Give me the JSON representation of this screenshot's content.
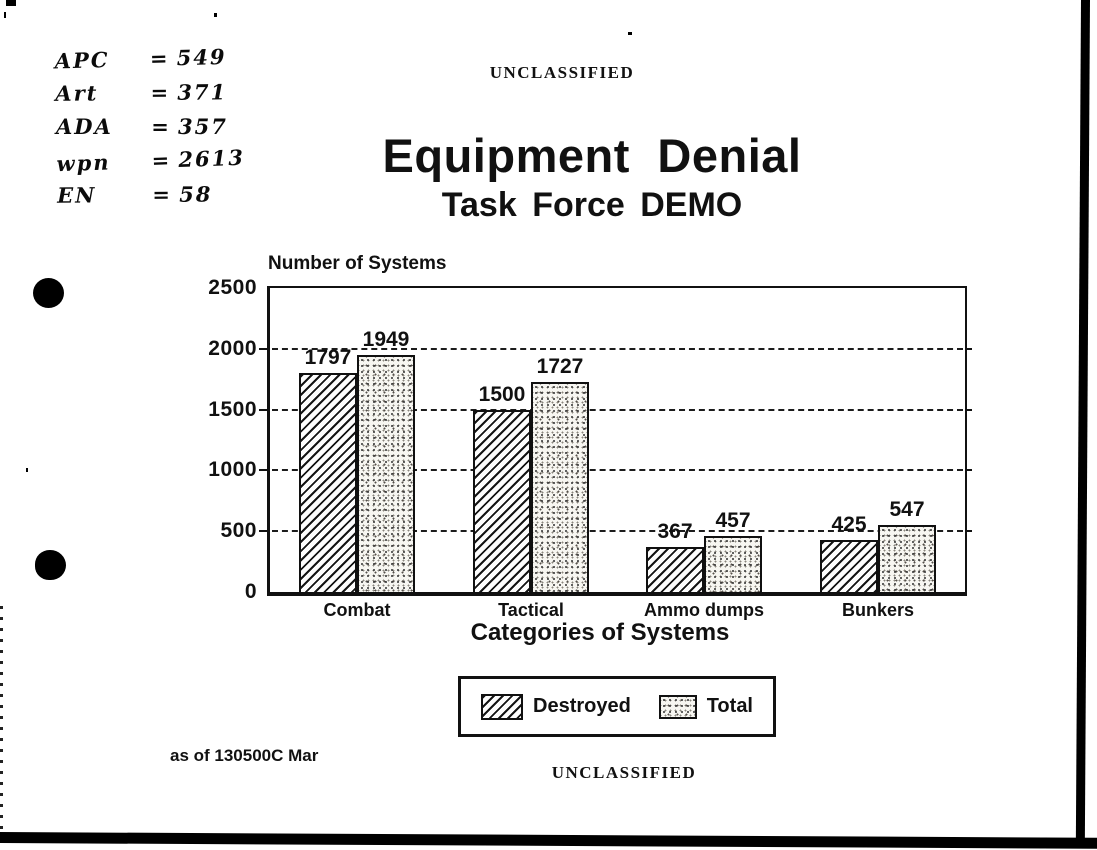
{
  "classification": {
    "top": "UNCLASSIFIED",
    "bottom": "UNCLASSIFIED"
  },
  "title": {
    "line1": "Equipment Denial",
    "line2": "Task Force DEMO"
  },
  "handwritten_notes": [
    {
      "label": "APC",
      "eq": "=",
      "value": "549"
    },
    {
      "label": "Art",
      "eq": "=",
      "value": "371"
    },
    {
      "label": "ADA",
      "eq": "=",
      "value": "357"
    },
    {
      "label": "wpn",
      "eq": "=",
      "value": "2613"
    },
    {
      "label": "EN",
      "eq": "=",
      "value": "58"
    }
  ],
  "chart_data": {
    "type": "bar",
    "grouped": true,
    "categories": [
      "Combat",
      "Tactical",
      "Ammo dumps",
      "Bunkers"
    ],
    "series": [
      {
        "name": "Destroyed",
        "pattern": "diagonal-hatch",
        "values": [
          1797,
          1500,
          367,
          425
        ]
      },
      {
        "name": "Total",
        "pattern": "stipple",
        "values": [
          1949,
          1727,
          457,
          547
        ]
      }
    ],
    "title": "Equipment Denial — Task Force DEMO",
    "ylabel": "Number of Systems",
    "xlabel": "Categories of Systems",
    "ylim": [
      0,
      2500
    ],
    "yticks": [
      2500,
      2000,
      1500,
      1000,
      500,
      0
    ],
    "grid": "horizontal-dashed",
    "legend_position": "bottom-center"
  },
  "footer": {
    "as_of": "as of 130500C Mar"
  },
  "colors": {
    "ink": "#111111",
    "paper": "#ffffff"
  }
}
